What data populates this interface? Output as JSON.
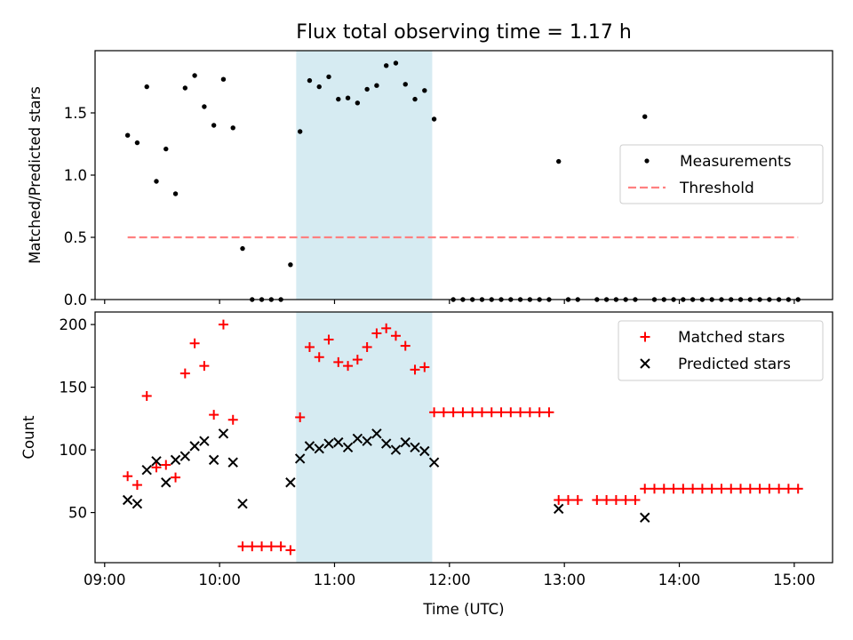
{
  "colors": {
    "span_fill": "#add8e6",
    "matched": "#ff0000",
    "predicted": "#000000",
    "measurement": "#000000",
    "threshold": "#ff8080"
  },
  "chart_data": [
    {
      "type": "scatter",
      "title": "Flux total observing time = 1.17 h",
      "ylabel": "Matched/Predicted stars",
      "ylim": [
        0,
        2.0
      ],
      "yticks": [
        0.0,
        0.5,
        1.0,
        1.5
      ],
      "ytick_labels": [
        "0.0",
        "0.5",
        "1.0",
        "1.5"
      ],
      "highlight_span": {
        "start": "10:40",
        "end": "11:51"
      },
      "legend": {
        "position": "center-right",
        "entries": [
          "Measurements",
          "Threshold"
        ]
      },
      "threshold": {
        "name": "Threshold",
        "value": 0.5,
        "start": "09:12",
        "end": "15:02",
        "style": "dashed"
      },
      "series": [
        {
          "name": "Measurements",
          "marker": "dot",
          "points": [
            [
              "09:12",
              1.32
            ],
            [
              "09:17",
              1.26
            ],
            [
              "09:22",
              1.71
            ],
            [
              "09:27",
              0.95
            ],
            [
              "09:32",
              1.21
            ],
            [
              "09:37",
              0.85
            ],
            [
              "09:42",
              1.7
            ],
            [
              "09:47",
              1.8
            ],
            [
              "09:52",
              1.55
            ],
            [
              "09:57",
              1.4
            ],
            [
              "10:02",
              1.77
            ],
            [
              "10:07",
              1.38
            ],
            [
              "10:12",
              0.41
            ],
            [
              "10:17",
              0.0
            ],
            [
              "10:22",
              0.0
            ],
            [
              "10:27",
              0.0
            ],
            [
              "10:32",
              0.0
            ],
            [
              "10:37",
              0.28
            ],
            [
              "10:42",
              1.35
            ],
            [
              "10:47",
              1.76
            ],
            [
              "10:52",
              1.71
            ],
            [
              "10:57",
              1.79
            ],
            [
              "11:02",
              1.61
            ],
            [
              "11:07",
              1.62
            ],
            [
              "11:12",
              1.58
            ],
            [
              "11:17",
              1.69
            ],
            [
              "11:22",
              1.72
            ],
            [
              "11:27",
              1.88
            ],
            [
              "11:32",
              1.9
            ],
            [
              "11:37",
              1.73
            ],
            [
              "11:42",
              1.61
            ],
            [
              "11:47",
              1.68
            ],
            [
              "11:52",
              1.45
            ],
            [
              "12:02",
              0.0
            ],
            [
              "12:07",
              0.0
            ],
            [
              "12:12",
              0.0
            ],
            [
              "12:17",
              0.0
            ],
            [
              "12:22",
              0.0
            ],
            [
              "12:27",
              0.0
            ],
            [
              "12:32",
              0.0
            ],
            [
              "12:37",
              0.0
            ],
            [
              "12:42",
              0.0
            ],
            [
              "12:47",
              0.0
            ],
            [
              "12:52",
              0.0
            ],
            [
              "12:57",
              1.11
            ],
            [
              "13:02",
              0.0
            ],
            [
              "13:07",
              0.0
            ],
            [
              "13:17",
              0.0
            ],
            [
              "13:22",
              0.0
            ],
            [
              "13:27",
              0.0
            ],
            [
              "13:32",
              0.0
            ],
            [
              "13:37",
              0.0
            ],
            [
              "13:42",
              1.47
            ],
            [
              "13:47",
              0.0
            ],
            [
              "13:52",
              0.0
            ],
            [
              "13:57",
              0.0
            ],
            [
              "14:02",
              0.0
            ],
            [
              "14:07",
              0.0
            ],
            [
              "14:12",
              0.0
            ],
            [
              "14:17",
              0.0
            ],
            [
              "14:22",
              0.0
            ],
            [
              "14:27",
              0.0
            ],
            [
              "14:32",
              0.0
            ],
            [
              "14:37",
              0.0
            ],
            [
              "14:42",
              0.0
            ],
            [
              "14:47",
              0.0
            ],
            [
              "14:52",
              0.0
            ],
            [
              "14:57",
              0.0
            ],
            [
              "15:02",
              0.0
            ]
          ]
        }
      ]
    },
    {
      "type": "scatter",
      "xlabel": "Time (UTC)",
      "ylabel": "Count",
      "ylim": [
        10,
        210
      ],
      "yticks": [
        50,
        100,
        150,
        200
      ],
      "ytick_labels": [
        "50",
        "100",
        "150",
        "200"
      ],
      "xticks": [
        "09:00",
        "10:00",
        "11:00",
        "12:00",
        "13:00",
        "14:00",
        "15:00"
      ],
      "xtick_labels": [
        "09:00",
        "10:00",
        "11:00",
        "12:00",
        "13:00",
        "14:00",
        "15:00"
      ],
      "xlim": [
        "08:55",
        "15:20"
      ],
      "highlight_span": {
        "start": "10:40",
        "end": "11:51"
      },
      "legend": {
        "position": "top-right",
        "entries": [
          "Matched stars",
          "Predicted stars"
        ]
      },
      "series": [
        {
          "name": "Matched stars",
          "marker": "plus",
          "points": [
            [
              "09:12",
              79
            ],
            [
              "09:17",
              72
            ],
            [
              "09:22",
              143
            ],
            [
              "09:27",
              86
            ],
            [
              "09:32",
              88
            ],
            [
              "09:37",
              78
            ],
            [
              "09:42",
              161
            ],
            [
              "09:47",
              185
            ],
            [
              "09:52",
              167
            ],
            [
              "09:57",
              128
            ],
            [
              "10:02",
              200
            ],
            [
              "10:07",
              124
            ],
            [
              "10:12",
              23
            ],
            [
              "10:17",
              23
            ],
            [
              "10:22",
              23
            ],
            [
              "10:27",
              23
            ],
            [
              "10:32",
              23
            ],
            [
              "10:37",
              20
            ],
            [
              "10:42",
              126
            ],
            [
              "10:47",
              182
            ],
            [
              "10:52",
              174
            ],
            [
              "10:57",
              188
            ],
            [
              "11:02",
              170
            ],
            [
              "11:07",
              167
            ],
            [
              "11:12",
              172
            ],
            [
              "11:17",
              182
            ],
            [
              "11:22",
              193
            ],
            [
              "11:27",
              197
            ],
            [
              "11:32",
              191
            ],
            [
              "11:37",
              183
            ],
            [
              "11:42",
              164
            ],
            [
              "11:47",
              166
            ],
            [
              "11:52",
              130
            ],
            [
              "11:57",
              130
            ],
            [
              "12:02",
              130
            ],
            [
              "12:07",
              130
            ],
            [
              "12:12",
              130
            ],
            [
              "12:17",
              130
            ],
            [
              "12:22",
              130
            ],
            [
              "12:27",
              130
            ],
            [
              "12:32",
              130
            ],
            [
              "12:37",
              130
            ],
            [
              "12:42",
              130
            ],
            [
              "12:47",
              130
            ],
            [
              "12:52",
              130
            ],
            [
              "12:57",
              60
            ],
            [
              "13:02",
              60
            ],
            [
              "13:07",
              60
            ],
            [
              "13:17",
              60
            ],
            [
              "13:22",
              60
            ],
            [
              "13:27",
              60
            ],
            [
              "13:32",
              60
            ],
            [
              "13:37",
              60
            ],
            [
              "13:42",
              69
            ],
            [
              "13:47",
              69
            ],
            [
              "13:52",
              69
            ],
            [
              "13:57",
              69
            ],
            [
              "14:02",
              69
            ],
            [
              "14:07",
              69
            ],
            [
              "14:12",
              69
            ],
            [
              "14:17",
              69
            ],
            [
              "14:22",
              69
            ],
            [
              "14:27",
              69
            ],
            [
              "14:32",
              69
            ],
            [
              "14:37",
              69
            ],
            [
              "14:42",
              69
            ],
            [
              "14:47",
              69
            ],
            [
              "14:52",
              69
            ],
            [
              "14:57",
              69
            ],
            [
              "15:02",
              69
            ]
          ]
        },
        {
          "name": "Predicted stars",
          "marker": "x",
          "points": [
            [
              "09:12",
              60
            ],
            [
              "09:17",
              57
            ],
            [
              "09:22",
              84
            ],
            [
              "09:27",
              91
            ],
            [
              "09:32",
              74
            ],
            [
              "09:37",
              92
            ],
            [
              "09:42",
              95
            ],
            [
              "09:47",
              103
            ],
            [
              "09:52",
              107
            ],
            [
              "09:57",
              92
            ],
            [
              "10:02",
              113
            ],
            [
              "10:07",
              90
            ],
            [
              "10:12",
              57
            ],
            [
              "10:37",
              74
            ],
            [
              "10:42",
              93
            ],
            [
              "10:47",
              103
            ],
            [
              "10:52",
              101
            ],
            [
              "10:57",
              105
            ],
            [
              "11:02",
              106
            ],
            [
              "11:07",
              102
            ],
            [
              "11:12",
              109
            ],
            [
              "11:17",
              107
            ],
            [
              "11:22",
              113
            ],
            [
              "11:27",
              105
            ],
            [
              "11:32",
              100
            ],
            [
              "11:37",
              106
            ],
            [
              "11:42",
              102
            ],
            [
              "11:47",
              99
            ],
            [
              "11:52",
              90
            ],
            [
              "12:57",
              53
            ],
            [
              "13:42",
              46
            ]
          ]
        }
      ]
    }
  ]
}
